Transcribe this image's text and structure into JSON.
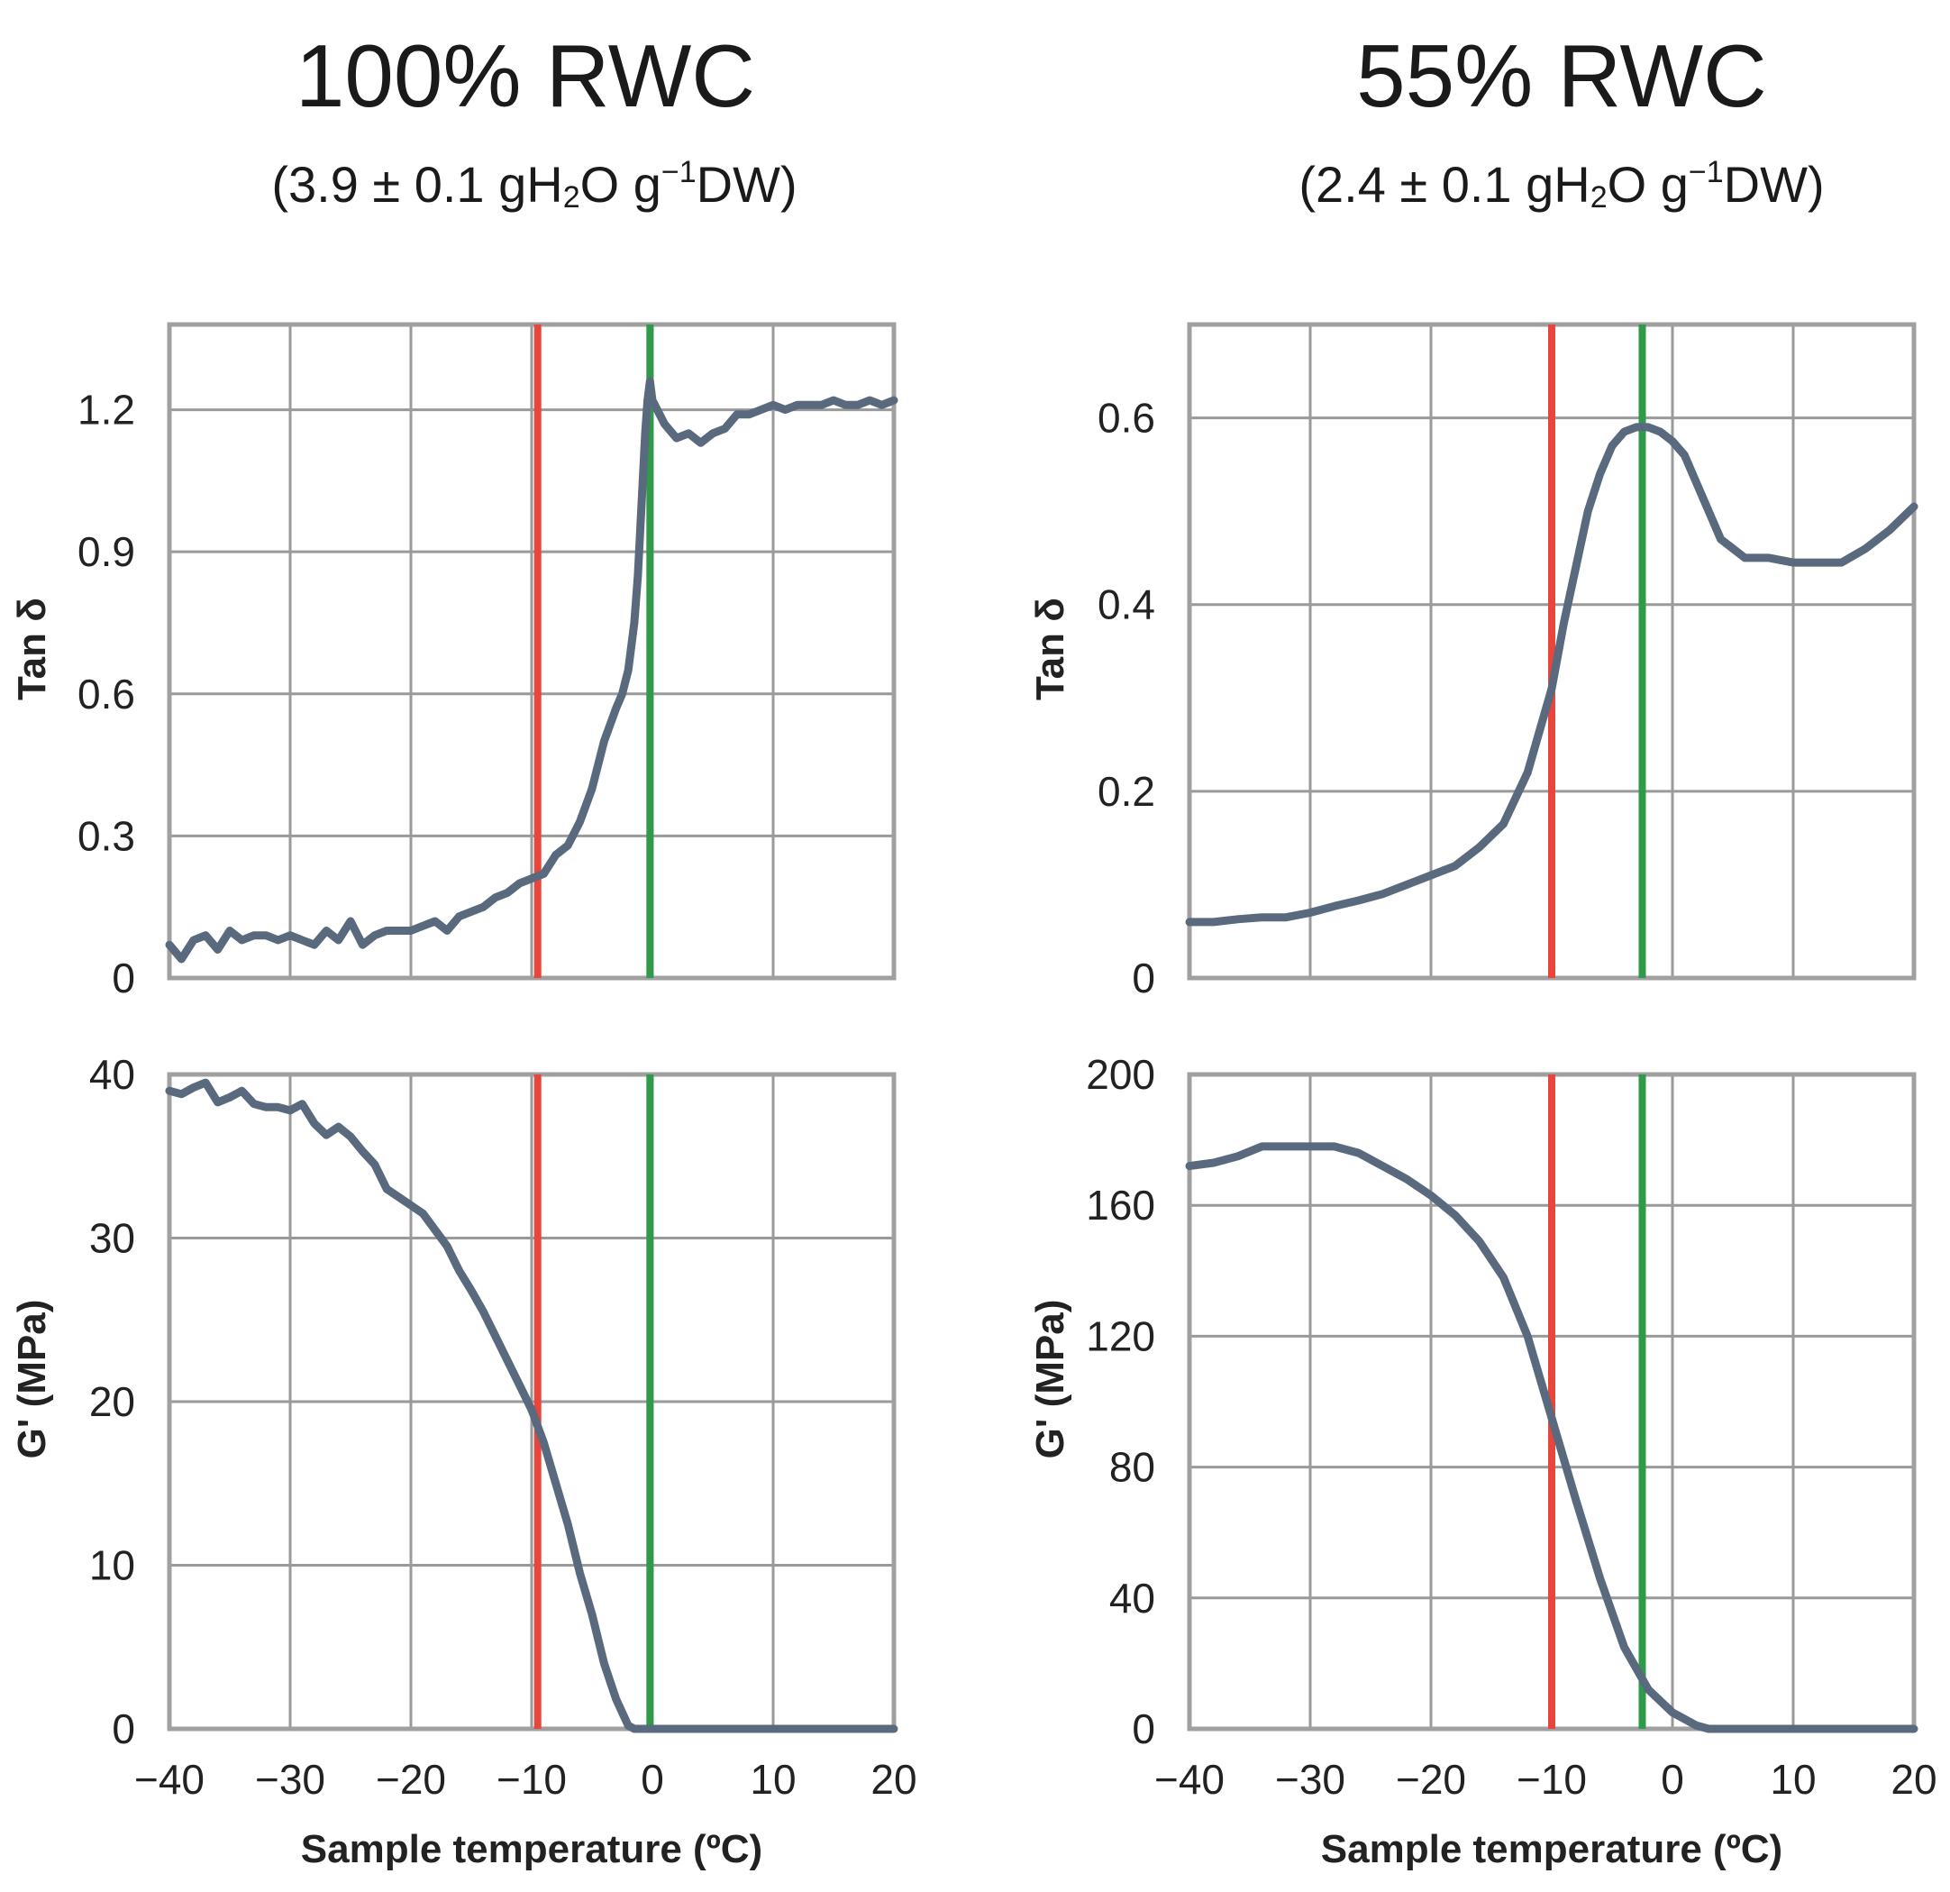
{
  "panels": [
    {
      "title": "100% RWC",
      "subtitle": {
        "pre": "(3.9 ± 0.1 gH",
        "sub": "2",
        "mid": "O g",
        "sup": "−1",
        "post": "DW)"
      }
    },
    {
      "title": "55% RWC",
      "subtitle": {
        "pre": "(2.4 ± 0.1 gH",
        "sub": "2",
        "mid": "O g",
        "sup": "−1",
        "post": "DW)"
      }
    }
  ],
  "colors": {
    "series": "#5a6a7e",
    "red_line": "#e8463c",
    "green_line": "#2e9a4a",
    "grid": "#9a9a9a",
    "frame": "#a0a0a0"
  },
  "chart_data": [
    {
      "type": "line",
      "panel": "100% RWC",
      "ylabel": "Tan δ",
      "xlabel": "",
      "xlim": [
        -40,
        20
      ],
      "ylim": [
        0,
        1.38
      ],
      "xticks": [
        -40,
        -30,
        -20,
        -10,
        0,
        10,
        20
      ],
      "yticks": [
        0,
        0.3,
        0.6,
        0.9,
        1.2
      ],
      "ytick_labels": [
        "0",
        "0.3",
        "0.6",
        "0.9",
        "1.2"
      ],
      "show_x_tick_labels": false,
      "vlines": [
        {
          "x": -9.5,
          "color": "red"
        },
        {
          "x": -0.2,
          "color": "green"
        }
      ],
      "series": [
        {
          "name": "Tan δ",
          "x": [
            -40,
            -39,
            -38,
            -37,
            -36,
            -35,
            -34,
            -33,
            -32,
            -31,
            -30,
            -29,
            -28,
            -27,
            -26,
            -25,
            -24,
            -23,
            -22,
            -21,
            -20,
            -19,
            -18,
            -17,
            -16,
            -15,
            -14,
            -13,
            -12,
            -11,
            -10,
            -9,
            -8,
            -7,
            -6,
            -5,
            -4,
            -3,
            -2.5,
            -2,
            -1.5,
            -1.2,
            -1,
            -0.8,
            -0.6,
            -0.4,
            -0.2,
            0,
            1,
            2,
            3,
            4,
            5,
            6,
            7,
            8,
            9,
            10,
            11,
            12,
            13,
            14,
            15,
            16,
            17,
            18,
            19,
            20
          ],
          "y": [
            0.07,
            0.04,
            0.08,
            0.09,
            0.06,
            0.1,
            0.08,
            0.09,
            0.09,
            0.08,
            0.09,
            0.08,
            0.07,
            0.1,
            0.08,
            0.12,
            0.07,
            0.09,
            0.1,
            0.1,
            0.1,
            0.11,
            0.12,
            0.1,
            0.13,
            0.14,
            0.15,
            0.17,
            0.18,
            0.2,
            0.21,
            0.22,
            0.26,
            0.28,
            0.33,
            0.4,
            0.5,
            0.57,
            0.6,
            0.65,
            0.75,
            0.85,
            0.95,
            1.05,
            1.15,
            1.22,
            1.26,
            1.22,
            1.17,
            1.14,
            1.15,
            1.13,
            1.15,
            1.16,
            1.19,
            1.19,
            1.2,
            1.21,
            1.2,
            1.21,
            1.21,
            1.21,
            1.22,
            1.21,
            1.21,
            1.22,
            1.21,
            1.22
          ]
        }
      ]
    },
    {
      "type": "line",
      "panel": "100% RWC",
      "ylabel": "G' (MPa)",
      "xlabel": "Sample temperature (ºC)",
      "xlim": [
        -40,
        20
      ],
      "ylim": [
        0,
        40
      ],
      "xticks": [
        -40,
        -30,
        -20,
        -10,
        0,
        10,
        20
      ],
      "xtick_labels": [
        "−40",
        "−30",
        "−20",
        "−10",
        "0",
        "10",
        "20"
      ],
      "yticks": [
        0,
        10,
        20,
        30,
        40
      ],
      "ytick_labels": [
        "0",
        "10",
        "20",
        "30",
        "40"
      ],
      "show_x_tick_labels": true,
      "vlines": [
        {
          "x": -9.5,
          "color": "red"
        },
        {
          "x": -0.2,
          "color": "green"
        }
      ],
      "series": [
        {
          "name": "G'",
          "x": [
            -40,
            -39,
            -38,
            -37,
            -36,
            -35,
            -34,
            -33,
            -32,
            -31,
            -30,
            -29,
            -28,
            -27,
            -26,
            -25,
            -24,
            -23,
            -22,
            -21,
            -20,
            -19,
            -18,
            -17,
            -16,
            -15,
            -14,
            -13,
            -12,
            -11,
            -10,
            -9,
            -8,
            -7,
            -6,
            -5,
            -4,
            -3,
            -2,
            -1.5,
            -1,
            0,
            5,
            10,
            15,
            20
          ],
          "y": [
            39,
            38.8,
            39.2,
            39.5,
            38.3,
            38.6,
            39,
            38.2,
            38,
            38,
            37.8,
            38.2,
            37,
            36.3,
            36.8,
            36.2,
            35.3,
            34.5,
            33,
            32.5,
            32,
            31.5,
            30.5,
            29.5,
            28,
            26.8,
            25.5,
            24,
            22.5,
            21,
            19.5,
            17.5,
            15,
            12.5,
            9.5,
            7,
            4,
            1.8,
            0.2,
            0,
            0,
            0,
            0,
            0,
            0,
            0
          ]
        }
      ]
    },
    {
      "type": "line",
      "panel": "55% RWC",
      "ylabel": "Tan δ",
      "xlabel": "",
      "xlim": [
        -40,
        20
      ],
      "ylim": [
        0,
        0.7
      ],
      "xticks": [
        -40,
        -30,
        -20,
        -10,
        0,
        10,
        20
      ],
      "yticks": [
        0,
        0.2,
        0.4,
        0.6
      ],
      "ytick_labels": [
        "0",
        "0.2",
        "0.4",
        "0.6"
      ],
      "show_x_tick_labels": false,
      "vlines": [
        {
          "x": -10,
          "color": "red"
        },
        {
          "x": -2.5,
          "color": "green"
        }
      ],
      "series": [
        {
          "name": "Tan δ",
          "x": [
            -40,
            -38,
            -36,
            -34,
            -32,
            -30,
            -28,
            -26,
            -24,
            -22,
            -20,
            -18,
            -16,
            -14,
            -12,
            -10,
            -9,
            -8,
            -7,
            -6,
            -5,
            -4,
            -3,
            -2,
            -1,
            0,
            1,
            2,
            3,
            4,
            5,
            6,
            8,
            10,
            12,
            14,
            16,
            18,
            20
          ],
          "y": [
            0.06,
            0.06,
            0.063,
            0.065,
            0.065,
            0.07,
            0.077,
            0.083,
            0.09,
            0.1,
            0.11,
            0.12,
            0.14,
            0.165,
            0.22,
            0.31,
            0.38,
            0.44,
            0.5,
            0.54,
            0.57,
            0.585,
            0.59,
            0.59,
            0.585,
            0.575,
            0.56,
            0.53,
            0.5,
            0.47,
            0.46,
            0.45,
            0.45,
            0.445,
            0.445,
            0.445,
            0.46,
            0.48,
            0.505
          ]
        }
      ]
    },
    {
      "type": "line",
      "panel": "55% RWC",
      "ylabel": "G' (MPa)",
      "xlabel": "Sample temperature (ºC)",
      "xlim": [
        -40,
        20
      ],
      "ylim": [
        0,
        200
      ],
      "xticks": [
        -40,
        -30,
        -20,
        -10,
        0,
        10,
        20
      ],
      "xtick_labels": [
        "−40",
        "−30",
        "−20",
        "−10",
        "0",
        "10",
        "20"
      ],
      "yticks": [
        0,
        40,
        80,
        120,
        160,
        200
      ],
      "ytick_labels": [
        "0",
        "40",
        "80",
        "120",
        "160",
        "200"
      ],
      "show_x_tick_labels": true,
      "vlines": [
        {
          "x": -10,
          "color": "red"
        },
        {
          "x": -2.5,
          "color": "green"
        }
      ],
      "series": [
        {
          "name": "G'",
          "x": [
            -40,
            -38,
            -36,
            -34,
            -32,
            -30,
            -28,
            -26,
            -24,
            -22,
            -20,
            -18,
            -16,
            -14,
            -12,
            -10,
            -8,
            -6,
            -4,
            -2,
            0,
            2,
            3,
            4,
            6,
            10,
            15,
            20
          ],
          "y": [
            172,
            173,
            175,
            178,
            178,
            178,
            178,
            176,
            172,
            168,
            163,
            157,
            149,
            138,
            120,
            95,
            70,
            46,
            25,
            12,
            5,
            1,
            0,
            0,
            0,
            0,
            0,
            0
          ]
        }
      ]
    }
  ]
}
